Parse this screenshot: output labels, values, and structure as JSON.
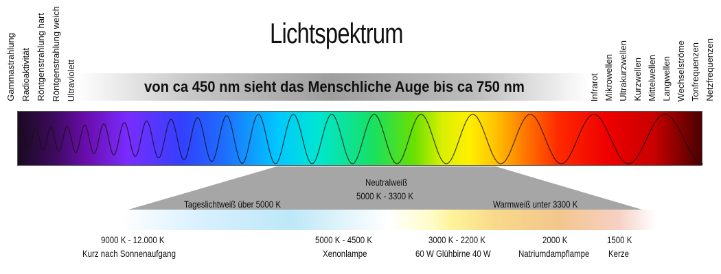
{
  "title": "Lichtspektrum",
  "visible_range_text": "von ca 450 nm sieht das Menschliche Auge bis ca 750 nm",
  "left_labels": [
    "Gammastrahlung",
    "Radioaktivität",
    "Röntgenstrahlung hart",
    "Röntgenstrahlung weich",
    "Ultraviolett"
  ],
  "right_labels": [
    "Infrarot",
    "Mikrowellen",
    "Ultrakurzwellen",
    "Kurzwellen",
    "Mittelwellen",
    "Langwellen",
    "Wechselströme",
    "Tonfrequenzen",
    "Netzfrequenzen"
  ],
  "trapezoid": {
    "neutral_title": "Neutralweiß",
    "neutral_range": "5000 K  -  3300 K",
    "daylight": "Tageslichtweiß über 5000 K",
    "warm": "Warmweiß unter 3300 K"
  },
  "bottom": {
    "range_daylight": "9000 K  -  12.000 K",
    "label_daylight": "Kurz nach Sonnenaufgang",
    "range_xenon": "5000 K  -  4500 K",
    "label_xenon": "Xenonlampe",
    "range_bulb": "3000 K  -  2200 K",
    "label_bulb": "60 W   Glühbirne   40 W",
    "value_sodium": "2000 K",
    "label_sodium": "Natriumdampflampe",
    "value_candle": "1500 K",
    "label_candle": "Kerze"
  }
}
